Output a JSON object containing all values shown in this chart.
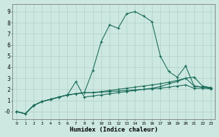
{
  "xlabel": "Humidex (Indice chaleur)",
  "background_color": "#cce8e0",
  "grid_color": "#b0d0c8",
  "line_color": "#1a6b5a",
  "xlim": [
    -0.5,
    23.5
  ],
  "ylim": [
    -0.7,
    9.7
  ],
  "x_ticks": [
    0,
    1,
    2,
    3,
    4,
    5,
    6,
    7,
    8,
    9,
    10,
    11,
    12,
    13,
    14,
    15,
    16,
    17,
    18,
    19,
    20,
    21,
    22,
    23
  ],
  "y_ticks": [
    0,
    1,
    2,
    3,
    4,
    5,
    6,
    7,
    8,
    9
  ],
  "y_tick_labels": [
    "-0",
    "1",
    "2",
    "3",
    "4",
    "5",
    "6",
    "7",
    "8",
    "9"
  ],
  "series": [
    [
      0,
      -0.2,
      0.55,
      0.9,
      1.1,
      1.3,
      1.5,
      1.6,
      1.7,
      3.7,
      6.3,
      7.8,
      7.5,
      8.8,
      9.0,
      8.6,
      8.1,
      5.0,
      3.6,
      3.1,
      4.1,
      2.3,
      2.2,
      2.1
    ],
    [
      0,
      -0.2,
      0.55,
      0.9,
      1.1,
      1.3,
      1.5,
      2.7,
      1.3,
      1.4,
      1.5,
      1.6,
      1.7,
      1.8,
      1.9,
      2.0,
      2.1,
      2.25,
      2.5,
      2.7,
      3.0,
      3.1,
      2.3,
      2.15
    ],
    [
      0,
      -0.2,
      0.55,
      0.9,
      1.1,
      1.3,
      1.5,
      1.6,
      1.7,
      1.7,
      1.8,
      1.9,
      2.0,
      2.1,
      2.2,
      2.3,
      2.4,
      2.5,
      2.65,
      2.8,
      3.0,
      2.3,
      2.2,
      2.15
    ],
    [
      0,
      -0.2,
      0.55,
      0.9,
      1.1,
      1.3,
      1.5,
      1.6,
      1.7,
      1.7,
      1.75,
      1.8,
      1.85,
      1.9,
      1.95,
      2.0,
      2.05,
      2.1,
      2.2,
      2.3,
      2.4,
      2.1,
      2.1,
      2.05
    ]
  ]
}
